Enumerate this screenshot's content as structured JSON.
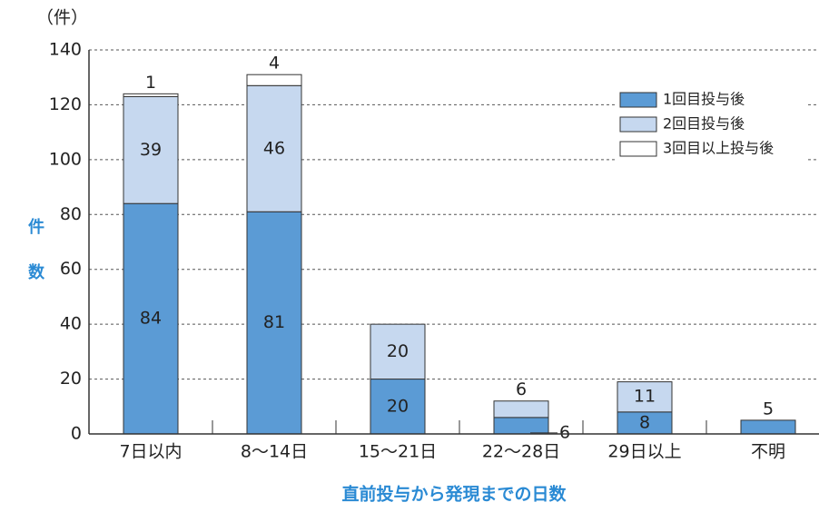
{
  "chart_data": {
    "type": "stacked_bar",
    "unit_label": "（件）",
    "y_label": "件数",
    "x_label": "直前投与から発現までの日数",
    "categories": [
      "7日以内",
      "8～14日",
      "15～21日",
      "22～28日",
      "29日以上",
      "不明"
    ],
    "series": [
      {
        "name": "1回目投与後",
        "color": "#5b9bd5",
        "values": [
          84,
          81,
          20,
          6,
          8,
          5
        ]
      },
      {
        "name": "2回目投与後",
        "color": "#c6d8ef",
        "values": [
          39,
          46,
          20,
          6,
          11,
          0
        ]
      },
      {
        "name": "3回目以上投与後",
        "color": "#ffffff",
        "values": [
          1,
          4,
          0,
          0,
          0,
          0
        ]
      }
    ],
    "ylim": [
      0,
      140
    ],
    "yticks": [
      0,
      20,
      40,
      60,
      80,
      100,
      120,
      140
    ],
    "grid": true,
    "legend": "upper right"
  }
}
